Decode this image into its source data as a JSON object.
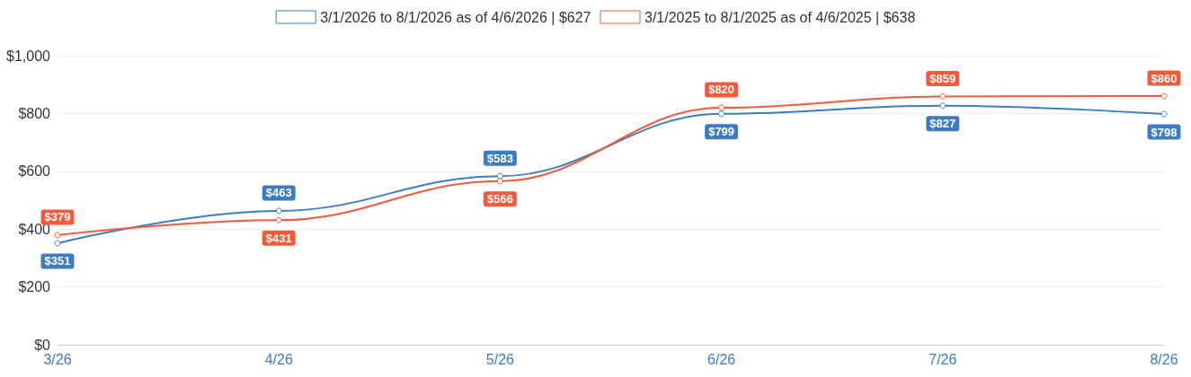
{
  "chart_data": {
    "type": "line",
    "categories": [
      "3/26",
      "4/26",
      "5/26",
      "6/26",
      "7/26",
      "8/26"
    ],
    "series": [
      {
        "name": "3/1/2026 to 8/1/2026 as of 4/6/2026 | $627",
        "color": "#3d7cc0",
        "values": [
          351,
          463,
          583,
          799,
          827,
          798
        ],
        "value_labels": [
          "$351",
          "$463",
          "$583",
          "$799",
          "$827",
          "$798"
        ]
      },
      {
        "name": "3/1/2025 to 8/1/2025 as of 4/6/2025 | $638",
        "color": "#f15a3a",
        "values": [
          379,
          431,
          566,
          820,
          859,
          860
        ],
        "value_labels": [
          "$379",
          "$431",
          "$566",
          "$820",
          "$859",
          "$860"
        ]
      }
    ],
    "ylim": [
      0,
      1000
    ],
    "yticks": [
      {
        "value": 0,
        "label": "$0"
      },
      {
        "value": 200,
        "label": "$200"
      },
      {
        "value": 400,
        "label": "$400"
      },
      {
        "value": 600,
        "label": "$600"
      },
      {
        "value": 800,
        "label": "$800"
      },
      {
        "value": 1000,
        "label": "$1,000"
      }
    ],
    "grid": "y",
    "legend": "top",
    "marker": "circle",
    "line_style": "solid"
  }
}
